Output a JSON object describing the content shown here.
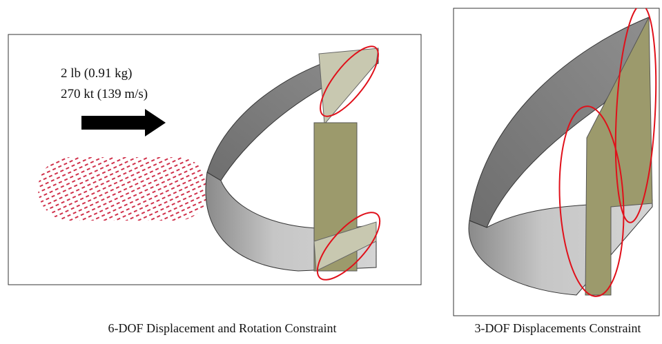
{
  "panels": [
    {
      "annotations": [
        "2 lb (0.91 kg)",
        "270 kt (139 m/s)"
      ],
      "caption": "6-DOF Displacement and Rotation Constraint"
    },
    {
      "caption": "3-DOF Displacements Constraint"
    }
  ]
}
